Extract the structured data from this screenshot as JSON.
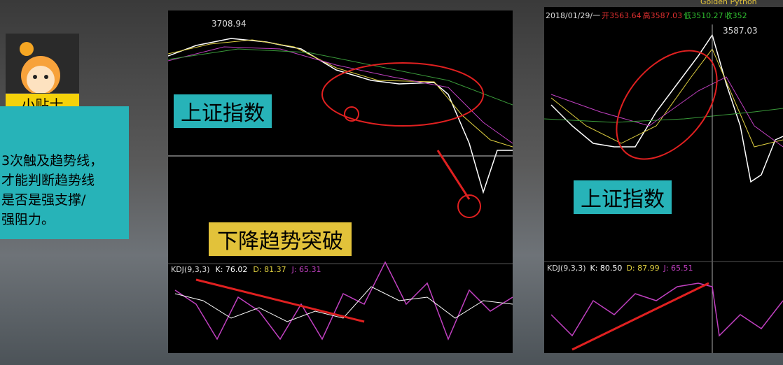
{
  "tip": {
    "title": "小贴士",
    "lines": [
      "3次触及趋势线，",
      "才能判断趋势线",
      "是否是强支撑/",
      "强阻力。"
    ]
  },
  "logo": "Golden Python",
  "left_chart": {
    "peak_label": "3708.94",
    "index_label": "上证指数",
    "caption": "下降趋势突破",
    "kdj": {
      "name": "KDJ(9,3,3)",
      "k": "K: 76.02",
      "d": "D: 81.37",
      "j": "J: 65.31"
    }
  },
  "right_chart": {
    "header": {
      "date": "2018/01/29/一",
      "open": "开3563.64",
      "high": "高3587.03",
      "low": "低3510.27",
      "close": "收352"
    },
    "peak_label": "3587.03",
    "index_label": "上证指数",
    "kdj": {
      "name": "KDJ(9,3,3)",
      "k": "K: 80.50",
      "d": "D: 87.99",
      "j": "J: 65.51"
    }
  }
}
